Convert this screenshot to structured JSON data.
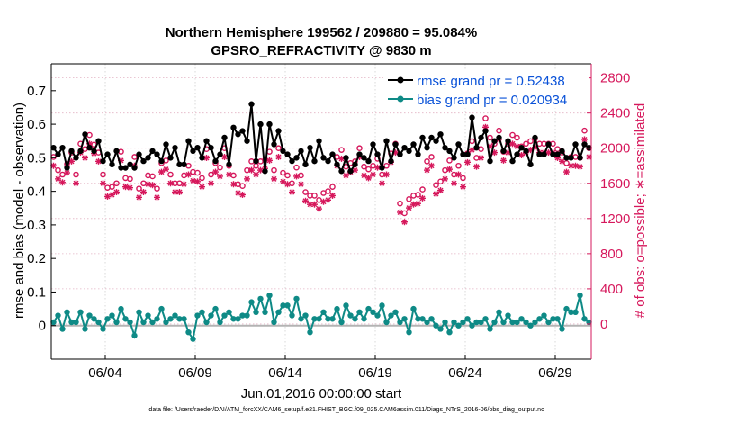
{
  "chart_data": {
    "type": "line",
    "title": "Northern Hemisphere 199562 / 209880 = 95.084%",
    "subtitle": "GPSRO_REFRACTIVITY @ 9830 m",
    "xlabel": "Jun.01,2016 00:00:00 start",
    "ylabel_left": "rmse and bias (model - observation)",
    "ylabel_right": "# of obs: o=possible; ∗=assimilated",
    "footer": "data file: /Users/raeder/DAI/ATM_forcXX/CAM6_setup/f.e21.FHIST_BGC.f09_025.CAM6assim.011/Diags_NTrS_2016-06/obs_diag_output.nc",
    "x_tick_labels": [
      "06/04",
      "06/09",
      "06/14",
      "06/19",
      "06/24",
      "06/29"
    ],
    "x_tick_days": [
      4,
      9,
      14,
      19,
      24,
      29
    ],
    "xlim": [
      1.0,
      31.0
    ],
    "ylim_left": [
      -0.1,
      0.78
    ],
    "yticks_left": [
      "0",
      "0.1",
      "0.2",
      "0.3",
      "0.4",
      "0.5",
      "0.6",
      "0.7"
    ],
    "ylim_right": [
      -400,
      2960
    ],
    "yticks_right": [
      "0",
      "400",
      "800",
      "1200",
      "1600",
      "2000",
      "2400",
      "2800"
    ],
    "grid": true,
    "legend_position": "top-right",
    "colors": {
      "rmse": "#000000",
      "bias": "#0e8a86",
      "obs": "#d6185c",
      "zero_line": "#b3b3b3",
      "legend_text": "#0a52d8"
    },
    "series": [
      {
        "name": "rmse grand pr = 0.52438",
        "kind": "rmse",
        "x": [
          1.125,
          1.375,
          1.625,
          1.875,
          2.125,
          2.375,
          2.625,
          2.875,
          3.125,
          3.375,
          3.625,
          3.875,
          4.125,
          4.375,
          4.625,
          4.875,
          5.125,
          5.375,
          5.625,
          5.875,
          6.125,
          6.375,
          6.625,
          6.875,
          7.125,
          7.375,
          7.625,
          7.875,
          8.125,
          8.375,
          8.625,
          8.875,
          9.125,
          9.375,
          9.625,
          9.875,
          10.125,
          10.375,
          10.625,
          10.875,
          11.125,
          11.375,
          11.625,
          11.875,
          12.125,
          12.375,
          12.625,
          12.875,
          13.125,
          13.375,
          13.625,
          13.875,
          14.125,
          14.375,
          14.625,
          14.875,
          15.125,
          15.375,
          15.625,
          15.875,
          16.125,
          16.375,
          16.625,
          16.875,
          17.125,
          17.375,
          17.625,
          17.875,
          18.125,
          18.375,
          18.625,
          18.875,
          19.125,
          19.375,
          19.625,
          19.875,
          20.125,
          20.375,
          20.625,
          20.875,
          21.125,
          21.375,
          21.625,
          21.875,
          22.125,
          22.375,
          22.625,
          22.875,
          23.125,
          23.375,
          23.625,
          23.875,
          24.125,
          24.375,
          24.625,
          24.875,
          25.125,
          25.375,
          25.625,
          25.875,
          26.125,
          26.375,
          26.625,
          26.875,
          27.125,
          27.375,
          27.625,
          27.875,
          28.125,
          28.375,
          28.625,
          28.875,
          29.125,
          29.375,
          29.625,
          29.875,
          30.125,
          30.375,
          30.625,
          30.875
        ],
        "values": [
          0.53,
          0.51,
          0.53,
          0.47,
          0.52,
          0.5,
          0.52,
          0.57,
          0.53,
          0.52,
          0.55,
          0.49,
          0.51,
          0.48,
          0.52,
          0.47,
          0.47,
          0.48,
          0.47,
          0.51,
          0.49,
          0.5,
          0.52,
          0.51,
          0.49,
          0.54,
          0.5,
          0.53,
          0.48,
          0.48,
          0.55,
          0.52,
          0.53,
          0.5,
          0.55,
          0.53,
          0.49,
          0.51,
          0.56,
          0.48,
          0.59,
          0.57,
          0.58,
          0.55,
          0.66,
          0.49,
          0.6,
          0.46,
          0.6,
          0.54,
          0.58,
          0.52,
          0.51,
          0.49,
          0.5,
          0.52,
          0.48,
          0.53,
          0.49,
          0.55,
          0.5,
          0.49,
          0.51,
          0.48,
          0.46,
          0.5,
          0.46,
          0.48,
          0.51,
          0.5,
          0.49,
          0.54,
          0.51,
          0.47,
          0.55,
          0.49,
          0.54,
          0.51,
          0.53,
          0.52,
          0.54,
          0.51,
          0.56,
          0.53,
          0.56,
          0.55,
          0.57,
          0.53,
          0.52,
          0.5,
          0.54,
          0.51,
          0.51,
          0.62,
          0.53,
          0.56,
          0.58,
          0.49,
          0.55,
          0.56,
          0.52,
          0.55,
          0.49,
          0.51,
          0.53,
          0.52,
          0.48,
          0.56,
          0.51,
          0.51,
          0.54,
          0.51,
          0.51,
          0.52,
          0.5,
          0.5,
          0.54,
          0.5,
          0.54,
          0.53
        ]
      },
      {
        "name": "bias grand pr = 0.020934",
        "kind": "bias",
        "x": [
          1.125,
          1.375,
          1.625,
          1.875,
          2.125,
          2.375,
          2.625,
          2.875,
          3.125,
          3.375,
          3.625,
          3.875,
          4.125,
          4.375,
          4.625,
          4.875,
          5.125,
          5.375,
          5.625,
          5.875,
          6.125,
          6.375,
          6.625,
          6.875,
          7.125,
          7.375,
          7.625,
          7.875,
          8.125,
          8.375,
          8.625,
          8.875,
          9.125,
          9.375,
          9.625,
          9.875,
          10.125,
          10.375,
          10.625,
          10.875,
          11.125,
          11.375,
          11.625,
          11.875,
          12.125,
          12.375,
          12.625,
          12.875,
          13.125,
          13.375,
          13.625,
          13.875,
          14.125,
          14.375,
          14.625,
          14.875,
          15.125,
          15.375,
          15.625,
          15.875,
          16.125,
          16.375,
          16.625,
          16.875,
          17.125,
          17.375,
          17.625,
          17.875,
          18.125,
          18.375,
          18.625,
          18.875,
          19.125,
          19.375,
          19.625,
          19.875,
          20.125,
          20.375,
          20.625,
          20.875,
          21.125,
          21.375,
          21.625,
          21.875,
          22.125,
          22.375,
          22.625,
          22.875,
          23.125,
          23.375,
          23.625,
          23.875,
          24.125,
          24.375,
          24.625,
          24.875,
          25.125,
          25.375,
          25.625,
          25.875,
          26.125,
          26.375,
          26.625,
          26.875,
          27.125,
          27.375,
          27.625,
          27.875,
          28.125,
          28.375,
          28.625,
          28.875,
          29.125,
          29.375,
          29.625,
          29.875,
          30.125,
          30.375,
          30.625,
          30.875
        ],
        "values": [
          0.01,
          0.03,
          -0.01,
          0.04,
          0.01,
          0.01,
          0.04,
          -0.01,
          0.03,
          0.02,
          0.01,
          -0.01,
          0.02,
          0.03,
          0.01,
          0.05,
          0.02,
          0.01,
          -0.03,
          0.04,
          0.01,
          0.03,
          0.01,
          0.02,
          0.05,
          0.01,
          0.02,
          0.03,
          0.02,
          0.02,
          -0.02,
          -0.04,
          0.03,
          0.04,
          0.01,
          0.03,
          0.05,
          0.01,
          0.03,
          0.04,
          0.02,
          0.02,
          0.03,
          0.03,
          0.07,
          0.04,
          0.08,
          0.04,
          0.09,
          0.01,
          0.04,
          0.06,
          0.06,
          0.03,
          0.08,
          0.02,
          0.03,
          -0.02,
          0.02,
          0.02,
          0.04,
          0.02,
          0.02,
          0.05,
          0.01,
          0.06,
          0.03,
          0.02,
          0.04,
          0.02,
          0.05,
          0.04,
          0.03,
          0.06,
          0.01,
          0.03,
          0.04,
          0.01,
          0.02,
          -0.02,
          0.05,
          0.02,
          0.02,
          0.01,
          0.02,
          0.0,
          -0.01,
          0.01,
          -0.02,
          0.01,
          0.0,
          0.01,
          0.02,
          0.0,
          0.01,
          0.01,
          0.02,
          -0.01,
          0.01,
          0.04,
          0.01,
          0.03,
          0.01,
          0.01,
          0.02,
          0.01,
          0.0,
          0.01,
          0.02,
          0.03,
          0.01,
          0.02,
          0.02,
          -0.01,
          0.05,
          0.04,
          0.04,
          0.09,
          0.02,
          0.01
        ]
      },
      {
        "name": "possible observations",
        "kind": "obs_possible",
        "marker": "o",
        "x": [
          1.125,
          1.375,
          1.625,
          1.875,
          2.125,
          2.375,
          2.625,
          2.875,
          3.125,
          3.375,
          3.625,
          3.875,
          4.125,
          4.375,
          4.625,
          4.875,
          5.125,
          5.375,
          5.625,
          5.875,
          6.125,
          6.375,
          6.625,
          6.875,
          7.125,
          7.375,
          7.625,
          7.875,
          8.125,
          8.375,
          8.625,
          8.875,
          9.125,
          9.375,
          9.625,
          9.875,
          10.125,
          10.375,
          10.625,
          10.875,
          11.125,
          11.375,
          11.625,
          11.875,
          12.125,
          12.375,
          12.625,
          12.875,
          13.125,
          13.375,
          13.625,
          13.875,
          14.125,
          14.375,
          14.625,
          14.875,
          15.125,
          15.375,
          15.625,
          15.875,
          16.125,
          16.375,
          16.625,
          16.875,
          17.125,
          17.375,
          17.625,
          17.875,
          18.125,
          18.375,
          18.625,
          18.875,
          19.125,
          19.375,
          19.625,
          19.875,
          20.125,
          20.375,
          20.625,
          20.875,
          21.125,
          21.375,
          21.625,
          21.875,
          22.125,
          22.375,
          22.625,
          22.875,
          23.125,
          23.375,
          23.625,
          23.875,
          24.125,
          24.375,
          24.625,
          24.875,
          25.125,
          25.375,
          25.625,
          25.875,
          26.125,
          26.375,
          26.625,
          26.875,
          27.125,
          27.375,
          27.625,
          27.875,
          28.125,
          28.375,
          28.625,
          28.875,
          29.125,
          29.375,
          29.625,
          29.875,
          30.125,
          30.375,
          30.625,
          30.875
        ],
        "values": [
          1900,
          1750,
          1700,
          1820,
          1950,
          1700,
          2050,
          1990,
          2150,
          2040,
          1950,
          1700,
          1550,
          1560,
          1600,
          1960,
          1660,
          1650,
          1900,
          1540,
          1600,
          1690,
          1680,
          1540,
          1830,
          1860,
          1700,
          1600,
          1600,
          1690,
          1800,
          1730,
          1720,
          1660,
          1990,
          1700,
          1830,
          1780,
          2000,
          1800,
          1690,
          1590,
          1570,
          1750,
          1850,
          1800,
          1850,
          1870,
          1960,
          1750,
          2000,
          1720,
          1690,
          1600,
          1780,
          1690,
          1500,
          1460,
          1460,
          1410,
          1490,
          1510,
          1560,
          1900,
          1980,
          1790,
          1830,
          1850,
          2000,
          1790,
          1760,
          1800,
          1880,
          1700,
          1800,
          1940,
          2050,
          1370,
          1260,
          1420,
          1460,
          1470,
          1530,
          1850,
          1900,
          1580,
          1620,
          1750,
          1860,
          1700,
          1800,
          1660,
          1940,
          2080,
          1890,
          1990,
          2340,
          2120,
          2050,
          2200,
          1960,
          2050,
          2150,
          2120,
          2020,
          2050,
          2080,
          2110,
          2050,
          2050,
          2050,
          2050,
          1990,
          1950,
          1830,
          1900,
          1900,
          1890,
          2200,
          2000
        ]
      },
      {
        "name": "assimilated observations",
        "kind": "obs_assimilated",
        "marker": "*",
        "x": [
          1.125,
          1.375,
          1.625,
          1.875,
          2.125,
          2.375,
          2.625,
          2.875,
          3.125,
          3.375,
          3.625,
          3.875,
          4.125,
          4.375,
          4.625,
          4.875,
          5.125,
          5.375,
          5.625,
          5.875,
          6.125,
          6.375,
          6.625,
          6.875,
          7.125,
          7.375,
          7.625,
          7.875,
          8.125,
          8.375,
          8.625,
          8.875,
          9.125,
          9.375,
          9.625,
          9.875,
          10.125,
          10.375,
          10.625,
          10.875,
          11.125,
          11.375,
          11.625,
          11.875,
          12.125,
          12.375,
          12.625,
          12.875,
          13.125,
          13.375,
          13.625,
          13.875,
          14.125,
          14.375,
          14.625,
          14.875,
          15.125,
          15.375,
          15.625,
          15.875,
          16.125,
          16.375,
          16.625,
          16.875,
          17.125,
          17.375,
          17.625,
          17.875,
          18.125,
          18.375,
          18.625,
          18.875,
          19.125,
          19.375,
          19.625,
          19.875,
          20.125,
          20.375,
          20.625,
          20.875,
          21.125,
          21.375,
          21.625,
          21.875,
          22.125,
          22.375,
          22.625,
          22.875,
          23.125,
          23.375,
          23.625,
          23.875,
          24.125,
          24.375,
          24.625,
          24.875,
          25.125,
          25.375,
          25.625,
          25.875,
          26.125,
          26.375,
          26.625,
          26.875,
          27.125,
          27.375,
          27.625,
          27.875,
          28.125,
          28.375,
          28.625,
          28.875,
          29.125,
          29.375,
          29.625,
          29.875,
          30.125,
          30.375,
          30.625,
          30.875
        ],
        "values": [
          1800,
          1650,
          1610,
          1720,
          1850,
          1600,
          1950,
          1890,
          2050,
          1940,
          1850,
          1600,
          1450,
          1470,
          1500,
          1860,
          1560,
          1550,
          1800,
          1440,
          1500,
          1590,
          1580,
          1440,
          1730,
          1760,
          1600,
          1500,
          1500,
          1590,
          1700,
          1630,
          1620,
          1560,
          1890,
          1600,
          1730,
          1680,
          1900,
          1700,
          1590,
          1490,
          1470,
          1650,
          1750,
          1700,
          1750,
          1770,
          1860,
          1650,
          1900,
          1620,
          1590,
          1500,
          1680,
          1590,
          1400,
          1360,
          1360,
          1310,
          1390,
          1410,
          1460,
          1800,
          1880,
          1690,
          1730,
          1750,
          1900,
          1690,
          1660,
          1700,
          1780,
          1600,
          1700,
          1840,
          1950,
          1270,
          1160,
          1320,
          1360,
          1370,
          1430,
          1750,
          1800,
          1480,
          1520,
          1650,
          1760,
          1600,
          1700,
          1560,
          1840,
          1980,
          1790,
          1890,
          2240,
          2020,
          1950,
          2100,
          1860,
          1950,
          2050,
          2020,
          1920,
          1950,
          1980,
          2010,
          1950,
          1950,
          1950,
          1950,
          1890,
          1850,
          1730,
          1800,
          1800,
          1790,
          2100,
          1900
        ]
      }
    ]
  }
}
